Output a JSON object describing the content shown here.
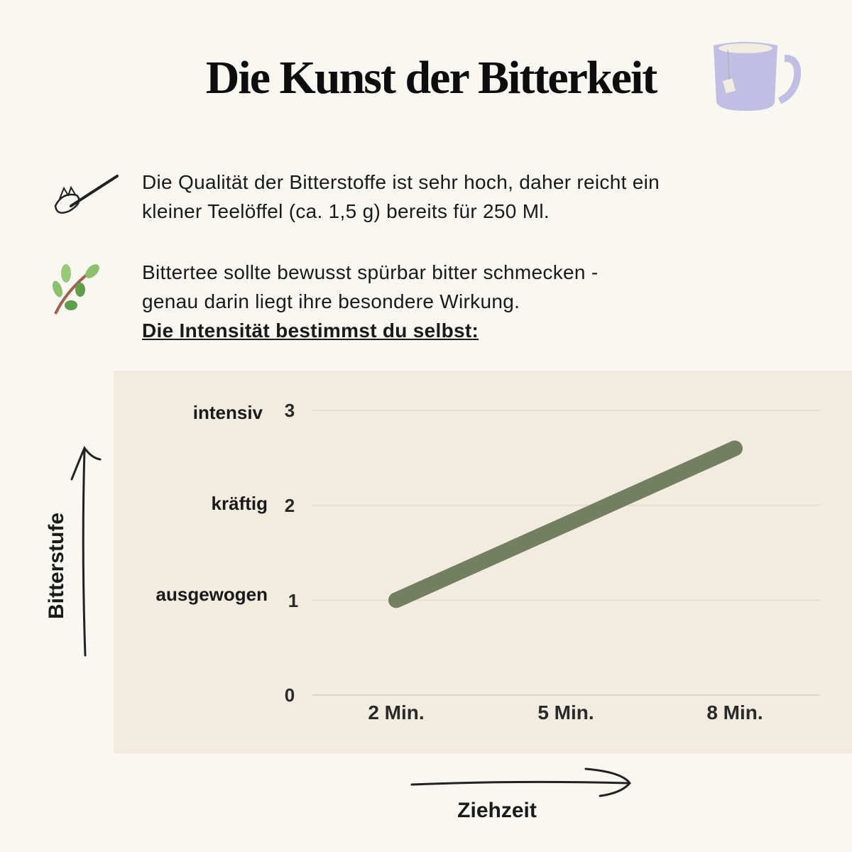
{
  "title": "Die Kunst der Bitterkeit",
  "paragraphs": [
    {
      "icon": "spoon-icon",
      "lines": [
        "Die Qualität der Bitterstoffe ist sehr hoch, daher reicht ein",
        "kleiner Teelöffel (ca. 1,5 g) bereits für 250 Ml."
      ]
    },
    {
      "icon": "leaf-branch-icon",
      "lines": [
        "Bittertee sollte bewusst spürbar bitter schmecken -",
        "genau darin liegt ihre besondere Wirkung."
      ],
      "emphasis": "Die Intensität bestimmst du selbst:"
    }
  ],
  "colors": {
    "background": "#f9f7f2",
    "chart_background": "#f1ebe0",
    "line": "#737f5e",
    "mug": "#c0bfe3"
  },
  "chart_data": {
    "type": "line",
    "categories": [
      "2 Min.",
      "5 Min.",
      "8 Min."
    ],
    "values": [
      1,
      1.8,
      2.6
    ],
    "xlabel": "Ziehzeit",
    "ylabel": "Bitterstufe",
    "ylim": [
      0,
      3
    ],
    "yticks": [
      0,
      1,
      2,
      3
    ],
    "ytick_labels": [
      "0",
      "1",
      "2",
      "3"
    ],
    "level_labels": {
      "1": "ausgewogen",
      "2": "kräftig",
      "3": "intensiv"
    },
    "grid": true
  }
}
